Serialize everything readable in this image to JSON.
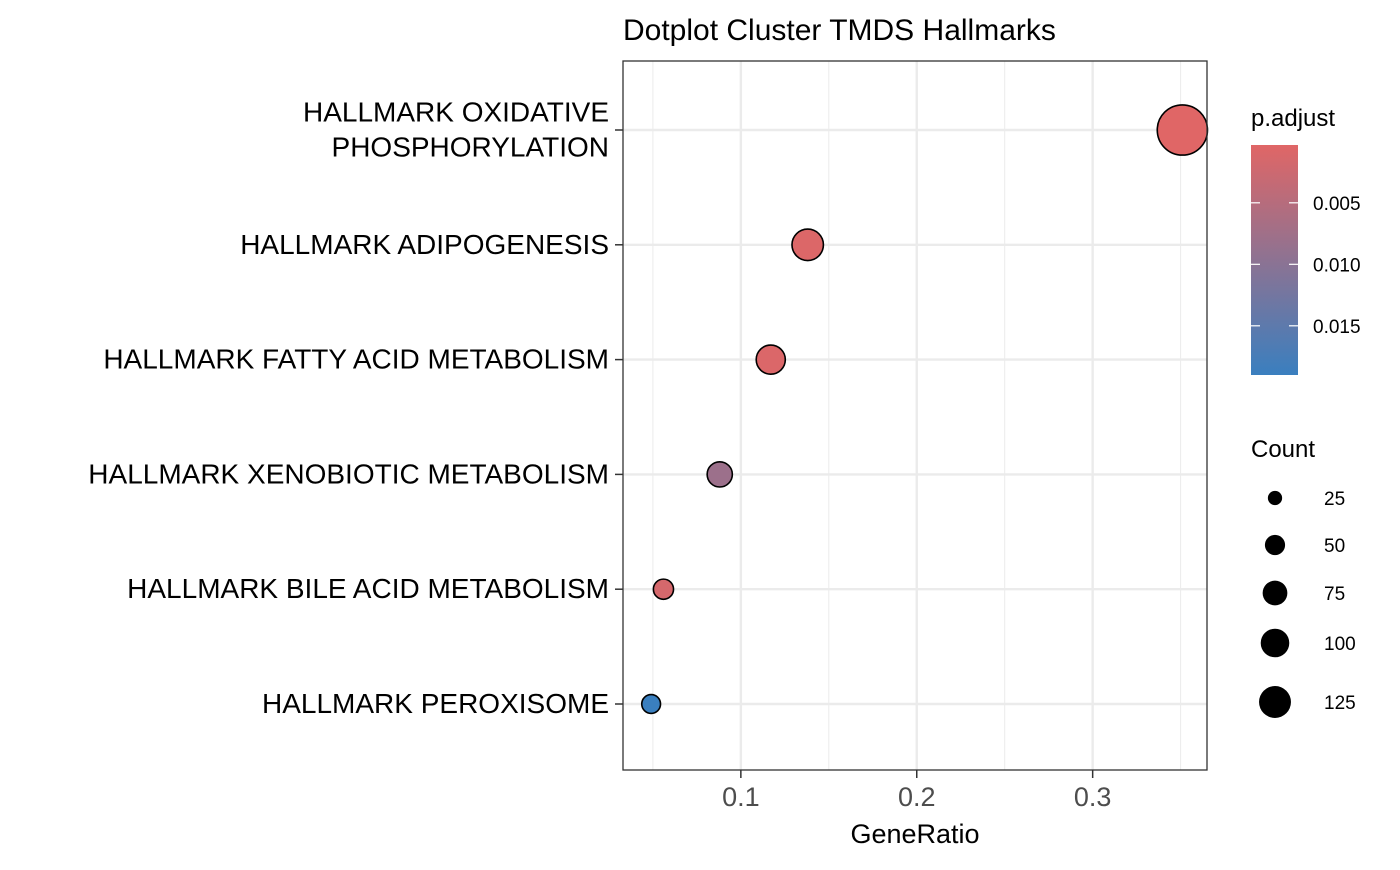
{
  "chart_data": {
    "type": "scatter",
    "title": "Dotplot Cluster TMDS Hallmarks",
    "xlabel": "GeneRatio",
    "ylabel": "",
    "xlim": [
      0.033,
      0.365
    ],
    "x_ticks": [
      0.1,
      0.2,
      0.3
    ],
    "x_tick_labels": [
      "0.1",
      "0.2",
      "0.3"
    ],
    "grid": true,
    "categories": [
      [
        "HALLMARK OXIDATIVE",
        "PHOSPHORYLATION"
      ],
      [
        "HALLMARK ADIPOGENESIS"
      ],
      [
        "HALLMARK FATTY ACID METABOLISM"
      ],
      [
        "HALLMARK XENOBIOTIC METABOLISM"
      ],
      [
        "HALLMARK BILE ACID METABOLISM"
      ],
      [
        "HALLMARK PEROXISOME"
      ]
    ],
    "points": [
      {
        "category_index": 0,
        "gene_ratio": 0.351,
        "count": 143,
        "p_adjust": 0.0003
      },
      {
        "category_index": 1,
        "gene_ratio": 0.138,
        "count": 56,
        "p_adjust": 0.0008
      },
      {
        "category_index": 2,
        "gene_ratio": 0.117,
        "count": 48,
        "p_adjust": 0.0009
      },
      {
        "category_index": 3,
        "gene_ratio": 0.088,
        "count": 36,
        "p_adjust": 0.008
      },
      {
        "category_index": 4,
        "gene_ratio": 0.056,
        "count": 23,
        "p_adjust": 0.0015
      },
      {
        "category_index": 5,
        "gene_ratio": 0.049,
        "count": 20,
        "p_adjust": 0.019
      }
    ],
    "color_legend": {
      "title": "p.adjust",
      "range": [
        0.0003,
        0.019
      ],
      "ticks": [
        0.005,
        0.01,
        0.015
      ],
      "tick_labels": [
        "0.005",
        "0.010",
        "0.015"
      ],
      "low_color": "#e06666",
      "high_color": "#3a7fbf"
    },
    "size_legend": {
      "title": "Count",
      "values": [
        25,
        50,
        75,
        100,
        125
      ],
      "labels": [
        "25",
        "50",
        "75",
        "100",
        "125"
      ],
      "color": "#000000"
    },
    "legend_position": "right",
    "panel_border_color": "#333333",
    "grid_color": "#ebebeb"
  }
}
